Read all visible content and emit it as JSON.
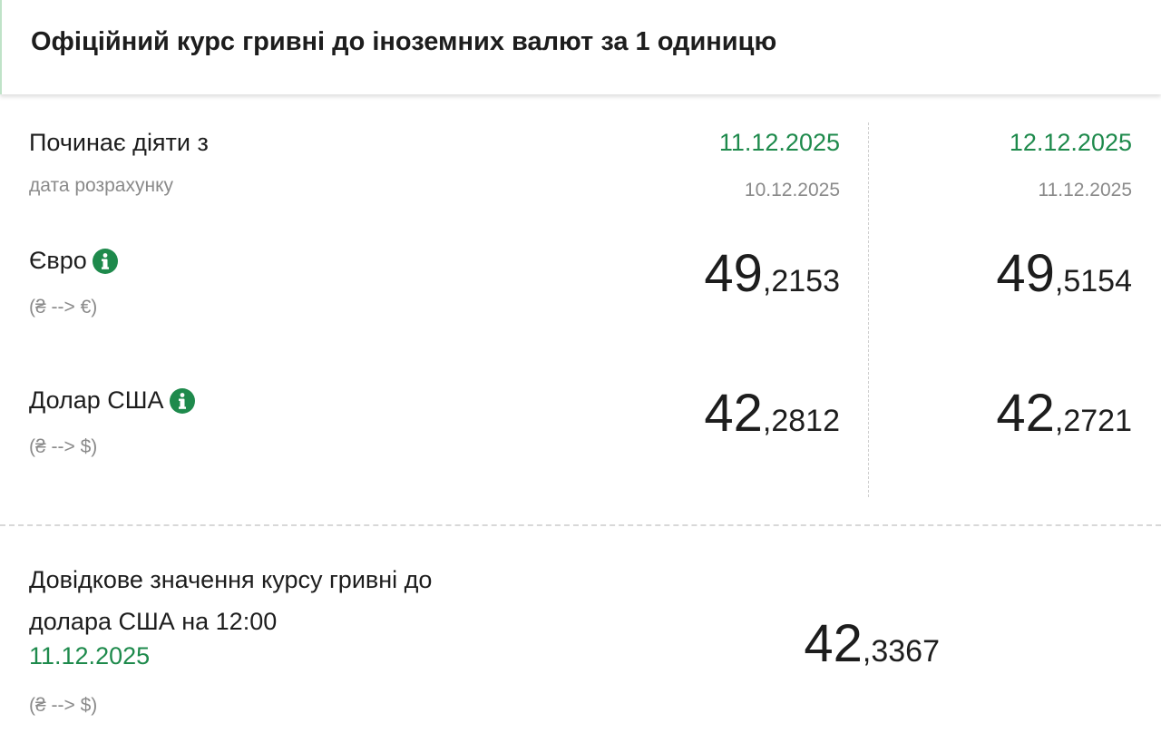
{
  "header": {
    "title": "Офіційний курс гривні до іноземних валют за 1 одиницю"
  },
  "table": {
    "start_label": "Починає діяти з",
    "calc_label": "дата розрахунку",
    "columns": [
      {
        "effective_date": "11.12.2025",
        "calc_date": "10.12.2025"
      },
      {
        "effective_date": "12.12.2025",
        "calc_date": "11.12.2025"
      }
    ],
    "rows": [
      {
        "currency": "Євро",
        "direction": "(₴ --> €)",
        "rates": [
          {
            "whole": "49",
            "fraction": ",2153"
          },
          {
            "whole": "49",
            "fraction": ",5154"
          }
        ]
      },
      {
        "currency": "Долар США",
        "direction": "(₴ --> $)",
        "rates": [
          {
            "whole": "42",
            "fraction": ",2812"
          },
          {
            "whole": "42",
            "fraction": ",2721"
          }
        ]
      }
    ]
  },
  "reference": {
    "label": "Довідкове значення курсу гривні до долара США на 12:00",
    "date": "11.12.2025",
    "direction": "(₴ --> $)",
    "rate": {
      "whole": "42",
      "fraction": ",3367"
    }
  }
}
